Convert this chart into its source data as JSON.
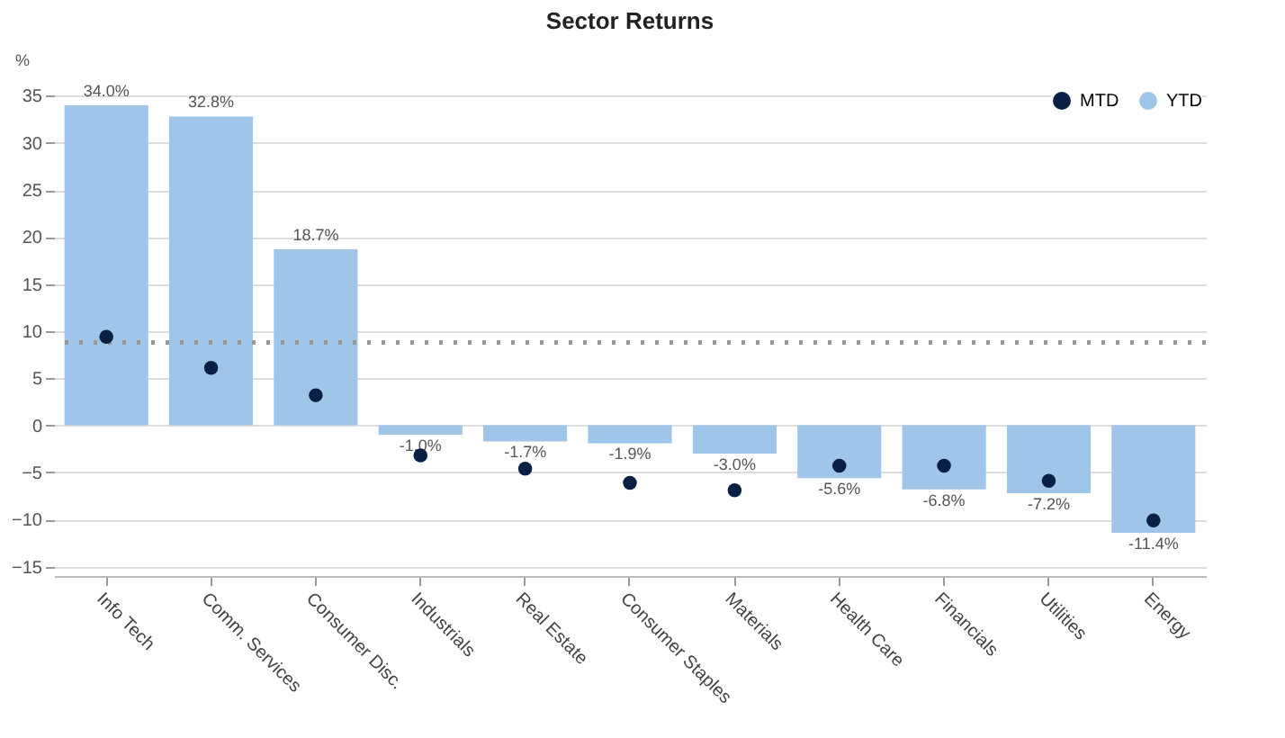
{
  "chart_data": {
    "type": "bar",
    "title": "Sector Returns",
    "ylabel": "%",
    "categories": [
      "Info Tech",
      "Comm. Services",
      "Consumer Disc.",
      "Industrials",
      "Real Estate",
      "Consumer Staples",
      "Materials",
      "Health Care",
      "Financials",
      "Utilities",
      "Energy"
    ],
    "series": [
      {
        "name": "MTD",
        "type": "scatter",
        "color": "#0a1f44",
        "values": [
          9.4,
          6.1,
          3.2,
          -3.2,
          -4.6,
          -6.1,
          -6.9,
          -4.3,
          -4.3,
          -5.9,
          -10.1
        ]
      },
      {
        "name": "YTD",
        "color": "#9fc5e8",
        "values": [
          34.0,
          32.8,
          18.7,
          -1.0,
          -1.7,
          -1.9,
          -3.0,
          -5.6,
          -6.8,
          -7.2,
          -11.4
        ],
        "value_labels": [
          "34.0%",
          "32.8%",
          "18.7%",
          "-1.0%",
          "-1.7%",
          "-1.9%",
          "-3.0%",
          "-5.6%",
          "-6.8%",
          "-7.2%",
          "-11.4%"
        ]
      }
    ],
    "ref_lines": [
      {
        "axis": "y",
        "value": 8.8,
        "color": "#999999",
        "line_style": "dotted"
      }
    ],
    "ylim": [
      -16,
      36
    ],
    "yticks": [
      -15,
      -10,
      -5,
      0,
      5,
      10,
      15,
      20,
      25,
      30,
      35
    ],
    "grid": "y",
    "legend": "top right",
    "marker": "circle"
  }
}
